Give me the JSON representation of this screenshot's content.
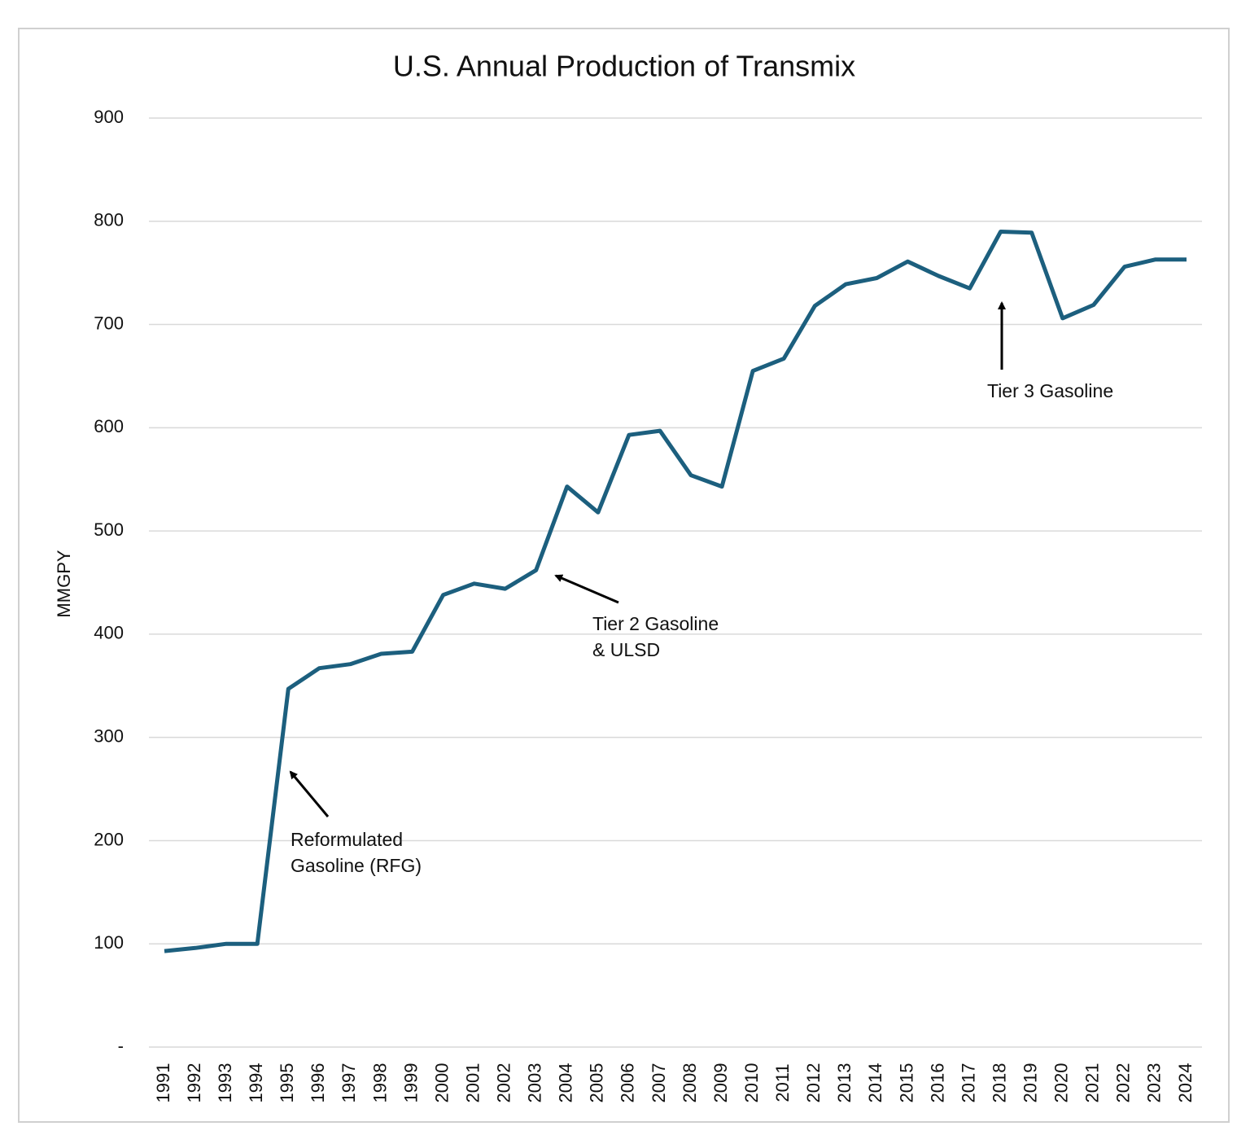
{
  "chart_data": {
    "type": "line",
    "title": "U.S. Annual Production of Transmix",
    "y_label": "MMGPY",
    "categories": [
      "1991",
      "1992",
      "1993",
      "1994",
      "1995",
      "1996",
      "1997",
      "1998",
      "1999",
      "2000",
      "2001",
      "2002",
      "2003",
      "2004",
      "2005",
      "2006",
      "2007",
      "2008",
      "2009",
      "2010",
      "2011",
      "2012",
      "2013",
      "2014",
      "2015",
      "2016",
      "2017",
      "2018",
      "2019",
      "2020",
      "2021",
      "2022",
      "2023",
      "2024"
    ],
    "values": [
      93,
      96,
      100,
      100,
      347,
      367,
      371,
      381,
      383,
      438,
      449,
      444,
      462,
      543,
      518,
      593,
      597,
      554,
      543,
      655,
      667,
      718,
      739,
      745,
      761,
      747,
      735,
      790,
      789,
      706,
      719,
      756,
      763,
      763
    ],
    "color": "#1c5f7e",
    "ylim": [
      0,
      900
    ],
    "yticks": [
      {
        "value": 0,
        "label": "-"
      },
      100,
      200,
      300,
      400,
      500,
      600,
      700,
      800,
      900
    ],
    "grid": true,
    "annotations": [
      {
        "lines": [
          "Reformulated",
          "Gasoline (RFG)"
        ]
      },
      {
        "lines": [
          "Tier 2 Gasoline",
          "& ULSD"
        ]
      },
      {
        "lines": [
          "Tier 3 Gasoline"
        ]
      }
    ]
  }
}
